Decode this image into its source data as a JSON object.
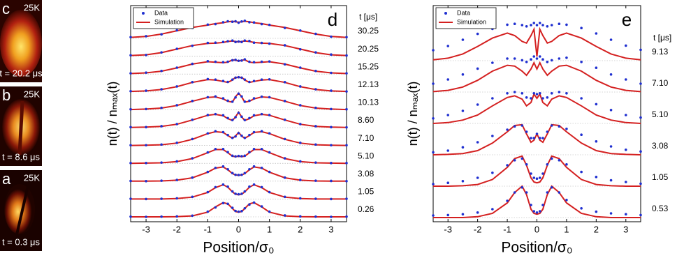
{
  "images": [
    {
      "letter": "c",
      "temperature": "25K",
      "time": "t = 20.2 μs"
    },
    {
      "letter": "b",
      "temperature": "25K",
      "time": "t = 8.6 μs"
    },
    {
      "letter": "a",
      "temperature": "25K",
      "time": "t = 0.3 μs"
    }
  ],
  "chart_data": [
    {
      "type": "line",
      "panel": "d",
      "x_label": "Position/σ₀",
      "y_label": "n(t) / nₘₐₓ(t)",
      "legend": [
        "Data",
        "Simulation"
      ],
      "data_color": "#1f2fd0",
      "sim_color": "#d42020",
      "trace_label_title": "t [μs]",
      "xlim": [
        -3.5,
        3.5
      ],
      "xticks": [
        -3,
        -2,
        -1,
        0,
        1,
        2,
        3
      ],
      "x": [
        -3.5,
        -3,
        -2.5,
        -2,
        -1.5,
        -1,
        -0.75,
        -0.5,
        -0.35,
        -0.2,
        -0.1,
        0,
        0.1,
        0.2,
        0.35,
        0.5,
        0.75,
        1,
        1.5,
        2,
        2.5,
        3,
        3.5
      ],
      "traces": [
        {
          "label": "30.25",
          "simulation": [
            0.04,
            0.08,
            0.18,
            0.32,
            0.46,
            0.56,
            0.62,
            0.66,
            0.7,
            0.72,
            0.7,
            0.68,
            0.7,
            0.72,
            0.7,
            0.66,
            0.62,
            0.56,
            0.46,
            0.32,
            0.18,
            0.08,
            0.04
          ],
          "data": [
            0.05,
            0.09,
            0.17,
            0.34,
            0.44,
            0.58,
            0.6,
            0.68,
            0.72,
            0.7,
            0.72,
            0.66,
            0.71,
            0.74,
            0.68,
            0.67,
            0.6,
            0.57,
            0.44,
            0.33,
            0.19,
            0.07,
            0.05
          ]
        },
        {
          "label": "20.25",
          "simulation": [
            0.03,
            0.06,
            0.15,
            0.3,
            0.45,
            0.54,
            0.55,
            0.58,
            0.62,
            0.64,
            0.62,
            0.6,
            0.62,
            0.64,
            0.62,
            0.58,
            0.55,
            0.54,
            0.45,
            0.3,
            0.15,
            0.06,
            0.03
          ],
          "data": [
            0.04,
            0.05,
            0.16,
            0.31,
            0.44,
            0.56,
            0.57,
            0.6,
            0.63,
            0.66,
            0.6,
            0.62,
            0.6,
            0.66,
            0.64,
            0.57,
            0.56,
            0.53,
            0.46,
            0.29,
            0.16,
            0.07,
            0.03
          ]
        },
        {
          "label": "15.25",
          "simulation": [
            0.02,
            0.05,
            0.12,
            0.26,
            0.42,
            0.52,
            0.5,
            0.48,
            0.5,
            0.6,
            0.58,
            0.55,
            0.58,
            0.6,
            0.5,
            0.48,
            0.5,
            0.52,
            0.42,
            0.26,
            0.12,
            0.05,
            0.02
          ],
          "data": [
            0.03,
            0.06,
            0.13,
            0.27,
            0.43,
            0.54,
            0.52,
            0.5,
            0.52,
            0.58,
            0.6,
            0.56,
            0.57,
            0.62,
            0.52,
            0.5,
            0.52,
            0.53,
            0.41,
            0.27,
            0.13,
            0.05,
            0.03
          ]
        },
        {
          "label": "12.13",
          "simulation": [
            0.02,
            0.04,
            0.1,
            0.22,
            0.4,
            0.52,
            0.5,
            0.44,
            0.4,
            0.5,
            0.62,
            0.6,
            0.62,
            0.5,
            0.4,
            0.44,
            0.5,
            0.52,
            0.4,
            0.22,
            0.1,
            0.04,
            0.02
          ],
          "data": [
            0.03,
            0.05,
            0.11,
            0.23,
            0.41,
            0.54,
            0.52,
            0.46,
            0.42,
            0.52,
            0.6,
            0.62,
            0.6,
            0.52,
            0.42,
            0.46,
            0.52,
            0.53,
            0.41,
            0.23,
            0.11,
            0.05,
            0.02
          ]
        },
        {
          "label": "10.13",
          "simulation": [
            0.01,
            0.03,
            0.07,
            0.18,
            0.36,
            0.52,
            0.54,
            0.46,
            0.36,
            0.32,
            0.55,
            0.7,
            0.55,
            0.32,
            0.36,
            0.46,
            0.54,
            0.52,
            0.36,
            0.18,
            0.07,
            0.03,
            0.01
          ],
          "data": [
            0.02,
            0.03,
            0.08,
            0.19,
            0.37,
            0.53,
            0.56,
            0.48,
            0.38,
            0.34,
            0.52,
            0.68,
            0.56,
            0.34,
            0.38,
            0.48,
            0.55,
            0.53,
            0.37,
            0.19,
            0.08,
            0.03,
            0.02
          ]
        },
        {
          "label": "8.60",
          "simulation": [
            0.01,
            0.02,
            0.05,
            0.14,
            0.32,
            0.52,
            0.56,
            0.5,
            0.38,
            0.3,
            0.45,
            0.65,
            0.45,
            0.3,
            0.38,
            0.5,
            0.56,
            0.52,
            0.32,
            0.14,
            0.05,
            0.02,
            0.01
          ],
          "data": [
            0.02,
            0.02,
            0.06,
            0.15,
            0.33,
            0.53,
            0.57,
            0.52,
            0.4,
            0.32,
            0.44,
            0.62,
            0.46,
            0.32,
            0.4,
            0.52,
            0.57,
            0.53,
            0.33,
            0.15,
            0.06,
            0.02,
            0.01
          ]
        },
        {
          "label": "7.10",
          "simulation": [
            0,
            0.01,
            0.03,
            0.1,
            0.26,
            0.5,
            0.58,
            0.55,
            0.42,
            0.3,
            0.4,
            0.55,
            0.4,
            0.3,
            0.42,
            0.55,
            0.58,
            0.5,
            0.26,
            0.1,
            0.03,
            0.01,
            0
          ],
          "data": [
            0.01,
            0.01,
            0.04,
            0.11,
            0.27,
            0.51,
            0.6,
            0.56,
            0.44,
            0.32,
            0.38,
            0.52,
            0.41,
            0.32,
            0.44,
            0.56,
            0.6,
            0.51,
            0.27,
            0.11,
            0.04,
            0.01,
            0.01
          ]
        },
        {
          "label": "5.10",
          "simulation": [
            0,
            0.01,
            0.02,
            0.07,
            0.2,
            0.45,
            0.58,
            0.58,
            0.45,
            0.3,
            0.28,
            0.3,
            0.28,
            0.3,
            0.45,
            0.58,
            0.58,
            0.45,
            0.2,
            0.07,
            0.02,
            0.01,
            0
          ],
          "data": [
            0.01,
            0.01,
            0.03,
            0.08,
            0.21,
            0.46,
            0.6,
            0.6,
            0.47,
            0.32,
            0.29,
            0.31,
            0.3,
            0.32,
            0.47,
            0.6,
            0.6,
            0.46,
            0.21,
            0.08,
            0.03,
            0.01,
            0.01
          ]
        },
        {
          "label": "3.08",
          "simulation": [
            0,
            0,
            0.01,
            0.04,
            0.14,
            0.38,
            0.55,
            0.6,
            0.48,
            0.32,
            0.26,
            0.25,
            0.26,
            0.32,
            0.48,
            0.6,
            0.55,
            0.38,
            0.14,
            0.04,
            0.01,
            0,
            0
          ],
          "data": [
            0.01,
            0,
            0.02,
            0.05,
            0.15,
            0.39,
            0.56,
            0.62,
            0.5,
            0.34,
            0.27,
            0.26,
            0.27,
            0.34,
            0.5,
            0.62,
            0.56,
            0.39,
            0.15,
            0.05,
            0.02,
            0.01,
            0
          ]
        },
        {
          "label": "1.05",
          "simulation": [
            0,
            0,
            0,
            0.02,
            0.08,
            0.28,
            0.48,
            0.6,
            0.5,
            0.3,
            0.2,
            0.18,
            0.2,
            0.3,
            0.5,
            0.6,
            0.48,
            0.28,
            0.08,
            0.02,
            0,
            0,
            0
          ],
          "data": [
            0.01,
            0,
            0.01,
            0.03,
            0.09,
            0.29,
            0.5,
            0.61,
            0.52,
            0.32,
            0.22,
            0.2,
            0.22,
            0.32,
            0.52,
            0.61,
            0.5,
            0.29,
            0.09,
            0.03,
            0.01,
            0,
            0.01
          ]
        },
        {
          "label": "0.26",
          "simulation": [
            0,
            0,
            0,
            0.01,
            0.04,
            0.2,
            0.42,
            0.6,
            0.55,
            0.35,
            0.22,
            0.2,
            0.22,
            0.35,
            0.55,
            0.6,
            0.42,
            0.2,
            0.04,
            0.01,
            0,
            0,
            0
          ],
          "data": [
            0.01,
            0,
            0.01,
            0.02,
            0.05,
            0.22,
            0.4,
            0.58,
            0.55,
            0.38,
            0.25,
            0.22,
            0.24,
            0.36,
            0.52,
            0.6,
            0.44,
            0.22,
            0.06,
            0.02,
            0.01,
            0,
            0.01
          ]
        }
      ]
    },
    {
      "type": "line",
      "panel": "e",
      "x_label": "Position/σ₀",
      "y_label": "n(t) / nₘₐₓ(t)",
      "legend": [
        "Data",
        "Simulation"
      ],
      "data_color": "#1f2fd0",
      "sim_color": "#d42020",
      "trace_label_title": "t [μs]",
      "xlim": [
        -3.5,
        3.5
      ],
      "xticks": [
        -3,
        -2,
        -1,
        0,
        1,
        2,
        3
      ],
      "x": [
        -3.5,
        -3,
        -2.5,
        -2,
        -1.5,
        -1,
        -0.75,
        -0.5,
        -0.35,
        -0.2,
        -0.1,
        0,
        0.1,
        0.2,
        0.35,
        0.5,
        0.75,
        1,
        1.5,
        2,
        2.5,
        3,
        3.5
      ],
      "traces": [
        {
          "label": "9.13",
          "simulation": [
            0.02,
            0.06,
            0.16,
            0.34,
            0.54,
            0.66,
            0.6,
            0.46,
            0.42,
            0.6,
            0.75,
            0.1,
            0.75,
            0.6,
            0.42,
            0.46,
            0.6,
            0.66,
            0.54,
            0.34,
            0.16,
            0.06,
            0.02
          ],
          "data": [
            0.25,
            0.35,
            0.5,
            0.64,
            0.76,
            0.86,
            0.88,
            0.85,
            0.82,
            0.85,
            0.9,
            0.85,
            0.9,
            0.85,
            0.82,
            0.85,
            0.88,
            0.86,
            0.78,
            0.65,
            0.5,
            0.36,
            0.26
          ]
        },
        {
          "label": "7.10",
          "simulation": [
            0.01,
            0.04,
            0.12,
            0.28,
            0.5,
            0.64,
            0.62,
            0.5,
            0.4,
            0.55,
            0.7,
            0.55,
            0.7,
            0.55,
            0.4,
            0.5,
            0.62,
            0.64,
            0.5,
            0.28,
            0.12,
            0.04,
            0.01
          ],
          "data": [
            0.2,
            0.3,
            0.42,
            0.56,
            0.7,
            0.8,
            0.8,
            0.76,
            0.72,
            0.78,
            0.85,
            0.8,
            0.85,
            0.78,
            0.72,
            0.76,
            0.8,
            0.82,
            0.72,
            0.58,
            0.42,
            0.3,
            0.2
          ]
        },
        {
          "label": "5.10",
          "simulation": [
            0,
            0.02,
            0.08,
            0.2,
            0.42,
            0.62,
            0.66,
            0.58,
            0.42,
            0.5,
            0.7,
            0.6,
            0.7,
            0.5,
            0.42,
            0.58,
            0.66,
            0.62,
            0.42,
            0.2,
            0.08,
            0.02,
            0
          ],
          "data": [
            0.12,
            0.2,
            0.3,
            0.45,
            0.6,
            0.72,
            0.75,
            0.72,
            0.62,
            0.6,
            0.72,
            0.7,
            0.72,
            0.6,
            0.62,
            0.72,
            0.75,
            0.72,
            0.6,
            0.46,
            0.32,
            0.2,
            0.14
          ]
        },
        {
          "label": "3.08",
          "simulation": [
            0,
            0.01,
            0.03,
            0.1,
            0.28,
            0.55,
            0.7,
            0.72,
            0.5,
            0.3,
            0.35,
            0.5,
            0.35,
            0.3,
            0.5,
            0.72,
            0.7,
            0.55,
            0.28,
            0.1,
            0.03,
            0.01,
            0
          ],
          "data": [
            0.06,
            0.1,
            0.18,
            0.3,
            0.45,
            0.6,
            0.68,
            0.7,
            0.55,
            0.4,
            0.4,
            0.5,
            0.4,
            0.4,
            0.55,
            0.7,
            0.68,
            0.62,
            0.48,
            0.32,
            0.2,
            0.12,
            0.08
          ]
        },
        {
          "label": "1.05",
          "simulation": [
            0,
            0,
            0.01,
            0.04,
            0.16,
            0.45,
            0.66,
            0.72,
            0.5,
            0.2,
            0.1,
            0.08,
            0.1,
            0.2,
            0.5,
            0.72,
            0.66,
            0.45,
            0.16,
            0.04,
            0.01,
            0,
            0
          ],
          "data": [
            0.05,
            0.08,
            0.12,
            0.2,
            0.32,
            0.5,
            0.62,
            0.66,
            0.52,
            0.3,
            0.2,
            0.18,
            0.2,
            0.3,
            0.52,
            0.66,
            0.62,
            0.52,
            0.34,
            0.22,
            0.14,
            0.1,
            0.06
          ]
        },
        {
          "label": "0.53",
          "simulation": [
            0,
            0,
            0,
            0.02,
            0.1,
            0.35,
            0.6,
            0.75,
            0.55,
            0.2,
            0.1,
            0.08,
            0.1,
            0.2,
            0.55,
            0.75,
            0.6,
            0.35,
            0.1,
            0.02,
            0,
            0,
            0
          ],
          "data": [
            0.05,
            0.06,
            0.08,
            0.12,
            0.2,
            0.4,
            0.6,
            0.72,
            0.6,
            0.3,
            0.15,
            0.12,
            0.15,
            0.3,
            0.6,
            0.72,
            0.6,
            0.42,
            0.22,
            0.14,
            0.1,
            0.08,
            0.06
          ]
        }
      ]
    }
  ]
}
